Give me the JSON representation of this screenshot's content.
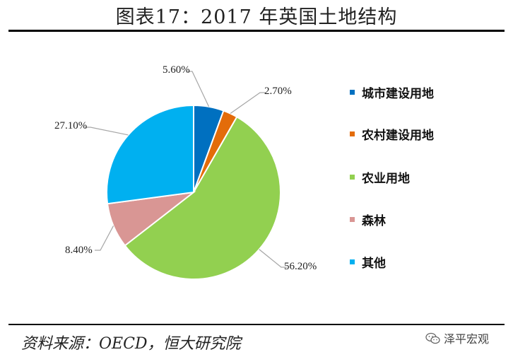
{
  "header": {
    "title": "图表17：2017 年英国土地结构"
  },
  "footer": {
    "source": "资料来源：OECD，恒大研究院",
    "watermark": "泽平宏观"
  },
  "icons": {
    "watermark_icon": "wechat-icon"
  },
  "chart_data": {
    "type": "pie",
    "title": "",
    "categories": [
      "城市建设用地",
      "农村建设用地",
      "农业用地",
      "森林",
      "其他"
    ],
    "values": [
      5.6,
      2.7,
      56.2,
      8.4,
      27.1
    ],
    "labels": [
      "5.60%",
      "2.70%",
      "56.20%",
      "8.40%",
      "27.10%"
    ],
    "colors": [
      "#0070C0",
      "#E36C0A",
      "#92D050",
      "#D99694",
      "#00B0F0"
    ],
    "legend_position": "right",
    "start": "top, clockwise"
  }
}
